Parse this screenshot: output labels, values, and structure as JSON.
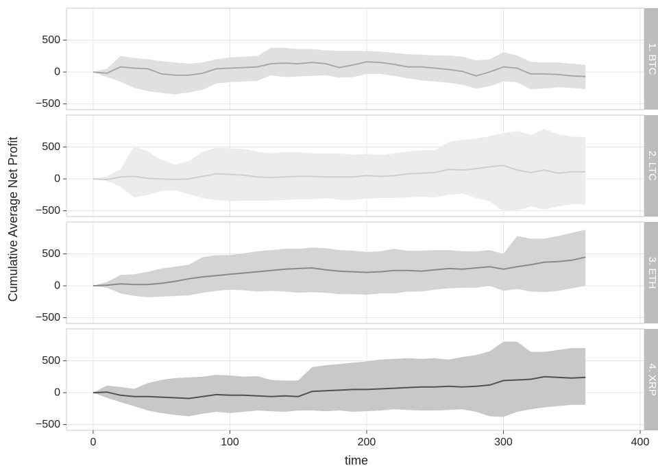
{
  "chart_data": {
    "type": "line",
    "y_label": "Cumulative Average Net Profit",
    "x_label": "time",
    "xlim": [
      -19.5,
      403
    ],
    "xticks": [
      0,
      100,
      200,
      300,
      400
    ],
    "ylim": [
      -590,
      1000
    ],
    "yticks": [
      {
        "value": -500,
        "label": "−500"
      },
      0,
      500
    ],
    "grid": true,
    "x": [
      0,
      10,
      20,
      30,
      40,
      50,
      60,
      70,
      80,
      90,
      100,
      110,
      120,
      130,
      140,
      150,
      160,
      170,
      180,
      190,
      200,
      210,
      220,
      230,
      240,
      250,
      260,
      270,
      280,
      290,
      300,
      310,
      320,
      330,
      340,
      350,
      360
    ],
    "panels": [
      {
        "label": "1. BTC",
        "color": "#a8a8a8",
        "fill": "#e0e0e0",
        "values": [
          0,
          -20,
          80,
          60,
          50,
          -30,
          -50,
          -50,
          -20,
          50,
          60,
          70,
          80,
          130,
          140,
          130,
          150,
          130,
          70,
          110,
          160,
          150,
          120,
          80,
          80,
          60,
          40,
          10,
          -60,
          0,
          80,
          60,
          -30,
          -30,
          -40,
          -60,
          -70
        ],
        "upper": [
          0,
          50,
          250,
          220,
          200,
          170,
          150,
          130,
          150,
          200,
          230,
          240,
          250,
          380,
          380,
          360,
          360,
          340,
          330,
          330,
          330,
          320,
          300,
          280,
          270,
          260,
          260,
          240,
          180,
          200,
          310,
          260,
          160,
          150,
          150,
          130,
          110
        ],
        "lower": [
          0,
          -80,
          -150,
          -250,
          -300,
          -330,
          -350,
          -320,
          -280,
          -180,
          -160,
          -150,
          -140,
          -50,
          -80,
          -70,
          -60,
          -50,
          -90,
          -80,
          -30,
          -30,
          -60,
          -100,
          -130,
          -150,
          -170,
          -200,
          -260,
          -220,
          -150,
          -160,
          -270,
          -260,
          -240,
          -250,
          -270
        ]
      },
      {
        "label": "2. LTC",
        "color": "#cfcfcf",
        "fill": "#ececec",
        "values": [
          0,
          -10,
          30,
          40,
          10,
          0,
          -10,
          0,
          40,
          80,
          70,
          60,
          30,
          20,
          30,
          40,
          40,
          30,
          30,
          30,
          50,
          40,
          50,
          80,
          90,
          100,
          150,
          140,
          160,
          190,
          210,
          140,
          100,
          140,
          90,
          110,
          110
        ],
        "upper": [
          0,
          40,
          150,
          520,
          430,
          300,
          220,
          280,
          420,
          490,
          480,
          470,
          430,
          400,
          420,
          420,
          400,
          400,
          400,
          380,
          390,
          370,
          400,
          430,
          450,
          450,
          580,
          610,
          630,
          670,
          720,
          750,
          690,
          780,
          700,
          660,
          660
        ],
        "lower": [
          0,
          -30,
          -120,
          -290,
          -250,
          -190,
          -180,
          -240,
          -300,
          -330,
          -350,
          -340,
          -340,
          -340,
          -330,
          -320,
          -320,
          -300,
          -330,
          -330,
          -310,
          -300,
          -300,
          -290,
          -280,
          -290,
          -250,
          -230,
          -300,
          -350,
          -510,
          -500,
          -430,
          -480,
          -430,
          -400,
          -400
        ]
      },
      {
        "label": "3. ETH",
        "color": "#8a8a8a",
        "fill": "#d4d4d4",
        "values": [
          0,
          10,
          30,
          20,
          20,
          40,
          70,
          110,
          140,
          160,
          180,
          200,
          220,
          240,
          260,
          270,
          280,
          250,
          230,
          220,
          210,
          220,
          240,
          240,
          230,
          250,
          270,
          260,
          280,
          300,
          260,
          300,
          330,
          370,
          380,
          400,
          450
        ],
        "upper": [
          0,
          60,
          170,
          180,
          220,
          270,
          300,
          330,
          450,
          480,
          480,
          510,
          540,
          560,
          580,
          580,
          600,
          590,
          560,
          550,
          530,
          540,
          580,
          550,
          550,
          560,
          560,
          540,
          540,
          560,
          500,
          780,
          740,
          740,
          780,
          830,
          880
        ],
        "lower": [
          0,
          -30,
          -120,
          -160,
          -180,
          -170,
          -160,
          -150,
          -110,
          -80,
          -60,
          -70,
          -90,
          -80,
          -90,
          -110,
          -100,
          -110,
          -130,
          -130,
          -140,
          -120,
          -120,
          -90,
          -90,
          -60,
          -40,
          -30,
          -30,
          0,
          -80,
          -50,
          -90,
          -100,
          -80,
          -40,
          0
        ]
      },
      {
        "label": "4. XRP",
        "color": "#505050",
        "fill": "#c8c8c8",
        "values": [
          0,
          10,
          -40,
          -60,
          -60,
          -70,
          -80,
          -90,
          -60,
          -30,
          -40,
          -40,
          -50,
          -60,
          -50,
          -60,
          20,
          30,
          40,
          50,
          50,
          60,
          70,
          80,
          90,
          90,
          100,
          90,
          100,
          120,
          190,
          200,
          210,
          250,
          240,
          230,
          240
        ],
        "upper": [
          0,
          110,
          90,
          60,
          150,
          200,
          230,
          240,
          250,
          280,
          270,
          250,
          260,
          200,
          190,
          190,
          400,
          430,
          450,
          470,
          490,
          520,
          530,
          540,
          530,
          540,
          520,
          560,
          590,
          650,
          800,
          800,
          640,
          640,
          670,
          700,
          700
        ],
        "lower": [
          0,
          -80,
          -150,
          -210,
          -280,
          -320,
          -350,
          -370,
          -330,
          -300,
          -320,
          -300,
          -280,
          -290,
          -300,
          -280,
          -280,
          -290,
          -280,
          -300,
          -290,
          -280,
          -260,
          -270,
          -280,
          -280,
          -270,
          -260,
          -300,
          -370,
          -380,
          -300,
          -260,
          -230,
          -210,
          -190,
          -190
        ]
      }
    ]
  }
}
